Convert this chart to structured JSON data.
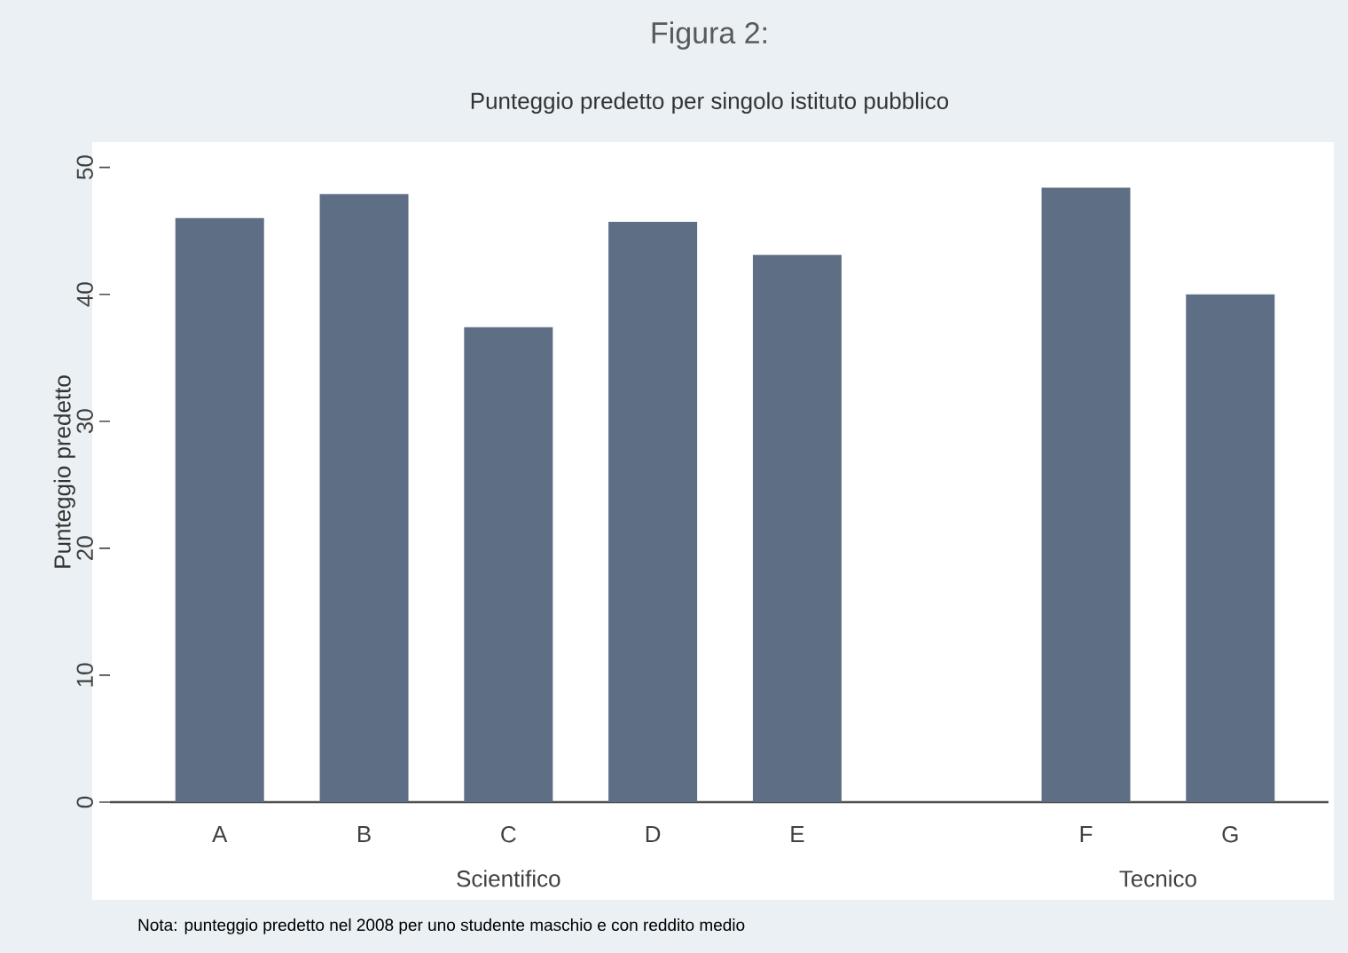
{
  "chart_data": {
    "type": "bar",
    "title": "Figura 2:",
    "subtitle": "Punteggio predetto per singolo istituto pubblico",
    "ylabel": "Punteggio predetto",
    "categories": [
      "A",
      "B",
      "C",
      "D",
      "E",
      null,
      "F",
      "G"
    ],
    "values": [
      46.0,
      47.9,
      37.4,
      45.7,
      43.1,
      null,
      48.4,
      40.0
    ],
    "color": "#5d6e85",
    "ylim": [
      0,
      52
    ],
    "yticks": [
      0,
      10,
      20,
      30,
      40,
      50
    ],
    "grid": false,
    "annotations": [
      "Scientifico",
      "Tecnico",
      "Nota: punteggio predetto nel 2008 per uno studente maschio e con reddito medio"
    ]
  }
}
